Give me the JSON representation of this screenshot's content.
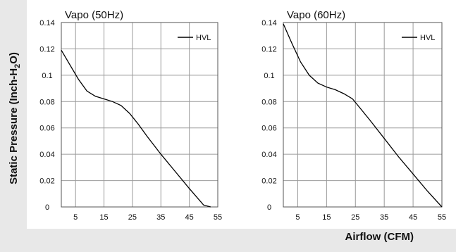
{
  "axis_labels": {
    "y_prefix": "Static Pressure (Inch-H",
    "y_sub": "2",
    "y_suffix": "O)",
    "x": "Airflow (CFM)"
  },
  "colors": {
    "band": "#e8e8e8",
    "grid": "#9a9a9a",
    "line": "#000000"
  },
  "chart_data": [
    {
      "type": "line",
      "title": "Vapo (50Hz)",
      "x_ticks": [
        5,
        15,
        25,
        35,
        45,
        55
      ],
      "y_ticks": [
        "0",
        "0.02",
        "0.04",
        "0.06",
        "0.08",
        "0.1",
        "0.12",
        "0.14"
      ],
      "xlim": [
        0,
        55
      ],
      "ylim": [
        0,
        0.14
      ],
      "legend": "top-right",
      "grid": true,
      "series": [
        {
          "name": "HVL",
          "x": [
            0,
            3,
            6,
            9,
            12,
            15,
            18,
            21,
            24,
            27,
            30,
            35,
            40,
            45,
            50,
            52.5
          ],
          "y": [
            0.119,
            0.108,
            0.097,
            0.088,
            0.084,
            0.082,
            0.08,
            0.077,
            0.071,
            0.063,
            0.054,
            0.04,
            0.027,
            0.014,
            0.0015,
            0.0
          ]
        }
      ]
    },
    {
      "type": "line",
      "title": "Vapo (60Hz)",
      "x_ticks": [
        5,
        15,
        25,
        35,
        45,
        55
      ],
      "y_ticks": [
        "0",
        "0.02",
        "0.04",
        "0.06",
        "0.08",
        "0.1",
        "0.12",
        "0.14"
      ],
      "xlim": [
        0,
        55
      ],
      "ylim": [
        0,
        0.14
      ],
      "legend": "top-right",
      "grid": true,
      "series": [
        {
          "name": "HVL",
          "x": [
            0,
            3,
            6,
            9,
            12,
            15,
            18,
            21,
            24,
            27,
            30,
            35,
            40,
            45,
            50,
            55
          ],
          "y": [
            0.139,
            0.124,
            0.11,
            0.1,
            0.094,
            0.091,
            0.089,
            0.086,
            0.082,
            0.074,
            0.066,
            0.052,
            0.038,
            0.025,
            0.012,
            0.0
          ]
        }
      ]
    }
  ]
}
